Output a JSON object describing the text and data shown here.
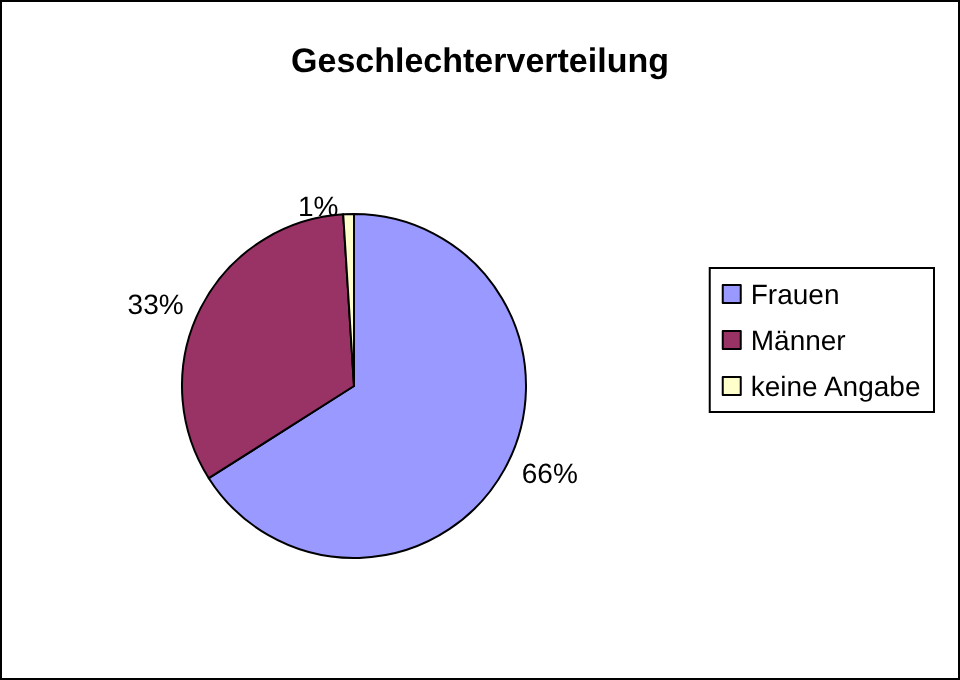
{
  "chart_data": {
    "type": "pie",
    "title": "Geschlechterverteilung",
    "categories": [
      "Frauen",
      "Männer",
      "keine Angabe"
    ],
    "values": [
      66,
      33,
      1
    ],
    "colors": [
      "#9999ff",
      "#993366",
      "#ffffcc"
    ],
    "value_labels": [
      "66%",
      "33%",
      "1%"
    ],
    "legend": "right"
  }
}
